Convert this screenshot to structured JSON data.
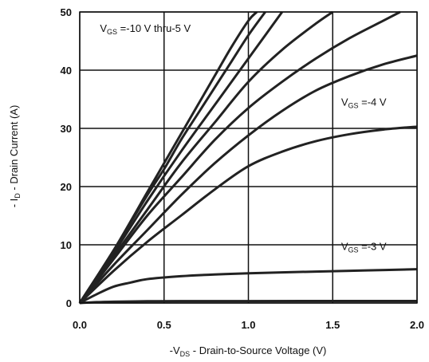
{
  "chart_data": {
    "type": "line",
    "title": "",
    "xlabel": {
      "prefix": "-V",
      "sub": "DS",
      "suffix": " - Drain-to-Source Voltage (V)"
    },
    "ylabel": {
      "prefix": "- I",
      "sub": "D",
      "suffix": " - Drain Current (A)"
    },
    "xlim": [
      0,
      2.0
    ],
    "ylim": [
      0,
      50
    ],
    "xticks": [
      "0.0",
      "0.5",
      "1.0",
      "1.5",
      "2.0"
    ],
    "yticks": [
      "0",
      "10",
      "20",
      "30",
      "40",
      "50"
    ],
    "xtick_values": [
      0,
      0.5,
      1.0,
      1.5,
      2.0
    ],
    "ytick_values": [
      0,
      10,
      20,
      30,
      40,
      50
    ],
    "grid": true,
    "annotations": [
      {
        "id": "ann-vgs-10-5",
        "prefix": "V",
        "sub": "GS",
        "suffix": " =-10 V thru-5 V",
        "x": 0.12,
        "y": 46.6
      },
      {
        "id": "ann-vgs-4",
        "prefix": "V",
        "sub": "GS",
        "suffix": " =-4 V",
        "x": 1.55,
        "y": 33.9
      },
      {
        "id": "ann-vgs-3",
        "prefix": "V",
        "sub": "GS",
        "suffix": " =-3 V",
        "x": 1.55,
        "y": 9.1
      }
    ],
    "series": [
      {
        "x": [
          0,
          0.2,
          0.4,
          0.5,
          0.6,
          0.7,
          0.8,
          0.9,
          1.0,
          1.05
        ],
        "y": [
          0,
          9,
          19,
          24,
          29,
          34,
          39,
          44,
          48.5,
          50
        ]
      },
      {
        "x": [
          0,
          0.2,
          0.4,
          0.5,
          0.6,
          0.7,
          0.8,
          0.9,
          1.0,
          1.1
        ],
        "y": [
          0,
          9,
          18.5,
          23,
          28,
          32.5,
          37,
          41.5,
          46,
          50
        ]
      },
      {
        "x": [
          0,
          0.2,
          0.4,
          0.6,
          0.8,
          1.0,
          1.1,
          1.2
        ],
        "y": [
          0,
          8.5,
          17.5,
          26,
          34,
          42,
          46,
          50
        ]
      },
      {
        "x": [
          0,
          0.2,
          0.4,
          0.6,
          0.8,
          1.0,
          1.2,
          1.4,
          1.5
        ],
        "y": [
          0,
          8,
          16,
          24,
          31,
          38,
          43.5,
          48,
          50
        ]
      },
      {
        "x": [
          0,
          0.2,
          0.4,
          0.6,
          0.8,
          1.0,
          1.2,
          1.4,
          1.6,
          1.8,
          1.9
        ],
        "y": [
          0,
          7.5,
          15,
          21.5,
          28,
          33.5,
          38,
          42,
          45.5,
          48.5,
          50
        ]
      },
      {
        "x": [
          0,
          0.2,
          0.4,
          0.6,
          0.8,
          1.0,
          1.2,
          1.4,
          1.6,
          1.8,
          2.0
        ],
        "y": [
          0,
          6.5,
          12.5,
          18.5,
          24,
          28.8,
          33,
          36.5,
          39,
          41,
          42.5
        ]
      },
      {
        "x": [
          0,
          0.2,
          0.4,
          0.6,
          0.8,
          1.0,
          1.2,
          1.4,
          1.6,
          1.8,
          2.0
        ],
        "y": [
          0,
          5.5,
          10.5,
          15,
          19.5,
          23.5,
          26,
          27.8,
          29,
          29.8,
          30.3
        ]
      },
      {
        "x": [
          0,
          0.1,
          0.2,
          0.3,
          0.4,
          0.6,
          0.8,
          1.0,
          1.4,
          1.7,
          2.0
        ],
        "y": [
          0,
          1.5,
          2.8,
          3.5,
          4.1,
          4.6,
          4.9,
          5.1,
          5.4,
          5.6,
          5.8
        ]
      },
      {
        "x": [
          0,
          0.1,
          0.2,
          0.4,
          0.6,
          1.0,
          1.5,
          2.0
        ],
        "y": [
          0,
          0.15,
          0.22,
          0.3,
          0.32,
          0.33,
          0.34,
          0.35
        ]
      }
    ]
  }
}
